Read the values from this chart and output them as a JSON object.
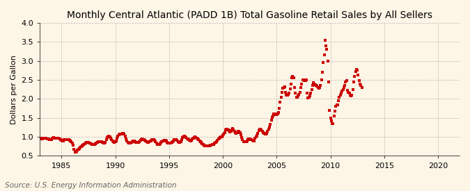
{
  "title": "Monthly Central Atlantic (PADD 1B) Total Gasoline Retail Sales by All Sellers",
  "ylabel": "Dollars per Gallon",
  "source": "Source: U.S. Energy Information Administration",
  "xlim": [
    1983,
    2022
  ],
  "ylim": [
    0.5,
    4.0
  ],
  "yticks": [
    0.5,
    1.0,
    1.5,
    2.0,
    2.5,
    3.0,
    3.5,
    4.0
  ],
  "xticks": [
    1985,
    1990,
    1995,
    2000,
    2005,
    2010,
    2015,
    2020
  ],
  "background_color": "#fdf5e6",
  "line_color": "#cc0000",
  "marker": "s",
  "markersize": 2.5,
  "title_fontsize": 10.0,
  "label_fontsize": 8.0,
  "tick_fontsize": 8.0,
  "source_fontsize": 7.5,
  "values": [
    0.97,
    0.95,
    0.94,
    0.96,
    0.97,
    0.97,
    0.96,
    0.95,
    0.95,
    0.94,
    0.93,
    0.93,
    0.93,
    0.96,
    0.98,
    0.97,
    0.97,
    0.97,
    0.96,
    0.96,
    0.96,
    0.94,
    0.92,
    0.91,
    0.9,
    0.9,
    0.92,
    0.93,
    0.93,
    0.92,
    0.92,
    0.92,
    0.91,
    0.89,
    0.87,
    0.83,
    0.78,
    0.67,
    0.6,
    0.6,
    0.62,
    0.65,
    0.68,
    0.7,
    0.72,
    0.74,
    0.76,
    0.78,
    0.8,
    0.82,
    0.84,
    0.85,
    0.85,
    0.85,
    0.84,
    0.83,
    0.82,
    0.81,
    0.8,
    0.8,
    0.8,
    0.82,
    0.84,
    0.86,
    0.87,
    0.88,
    0.88,
    0.87,
    0.87,
    0.85,
    0.83,
    0.84,
    0.86,
    0.92,
    0.98,
    1.01,
    1.02,
    1.0,
    0.97,
    0.93,
    0.9,
    0.88,
    0.86,
    0.87,
    0.9,
    0.96,
    1.02,
    1.06,
    1.07,
    1.07,
    1.08,
    1.09,
    1.1,
    1.08,
    1.02,
    0.94,
    0.89,
    0.85,
    0.83,
    0.83,
    0.84,
    0.86,
    0.88,
    0.89,
    0.89,
    0.88,
    0.86,
    0.85,
    0.85,
    0.86,
    0.88,
    0.91,
    0.93,
    0.94,
    0.93,
    0.93,
    0.91,
    0.89,
    0.87,
    0.86,
    0.86,
    0.87,
    0.89,
    0.9,
    0.92,
    0.93,
    0.92,
    0.91,
    0.88,
    0.84,
    0.81,
    0.81,
    0.81,
    0.82,
    0.85,
    0.87,
    0.89,
    0.9,
    0.91,
    0.91,
    0.89,
    0.86,
    0.84,
    0.83,
    0.83,
    0.84,
    0.86,
    0.88,
    0.9,
    0.92,
    0.93,
    0.93,
    0.91,
    0.88,
    0.86,
    0.85,
    0.88,
    0.93,
    0.99,
    1.01,
    1.02,
    1.0,
    0.98,
    0.95,
    0.94,
    0.93,
    0.91,
    0.9,
    0.91,
    0.94,
    0.97,
    0.99,
    1.0,
    0.99,
    0.97,
    0.95,
    0.93,
    0.9,
    0.88,
    0.85,
    0.82,
    0.8,
    0.78,
    0.77,
    0.77,
    0.77,
    0.76,
    0.76,
    0.77,
    0.79,
    0.79,
    0.8,
    0.8,
    0.81,
    0.83,
    0.85,
    0.87,
    0.91,
    0.94,
    0.97,
    0.99,
    1.0,
    1.01,
    1.04,
    1.07,
    1.12,
    1.18,
    1.2,
    1.21,
    1.19,
    1.16,
    1.13,
    1.15,
    1.19,
    1.22,
    1.18,
    1.15,
    1.11,
    1.1,
    1.12,
    1.14,
    1.14,
    1.11,
    1.05,
    0.99,
    0.93,
    0.88,
    0.87,
    0.87,
    0.88,
    0.9,
    0.92,
    0.94,
    0.94,
    0.93,
    0.92,
    0.91,
    0.9,
    0.89,
    0.97,
    1.0,
    1.04,
    1.09,
    1.17,
    1.2,
    1.2,
    1.18,
    1.15,
    1.12,
    1.09,
    1.07,
    1.08,
    1.1,
    1.14,
    1.2,
    1.26,
    1.33,
    1.44,
    1.52,
    1.55,
    1.6,
    1.6,
    1.59,
    1.59,
    1.6,
    1.65,
    1.76,
    1.91,
    2.05,
    2.18,
    2.28,
    2.3,
    2.32,
    2.18,
    2.1,
    2.09,
    2.11,
    2.16,
    2.27,
    2.4,
    2.55,
    2.6,
    2.55,
    2.3,
    2.15,
    2.05,
    2.05,
    2.08,
    2.12,
    2.18,
    2.3,
    2.4,
    2.5,
    2.5,
    2.48,
    2.48,
    2.5,
    2.15,
    2.02,
    2.05,
    2.08,
    2.15,
    2.25,
    2.35,
    2.42,
    2.4,
    2.38,
    2.35,
    2.33,
    2.3,
    2.28,
    2.3,
    2.35,
    2.5,
    2.7,
    2.95,
    3.15,
    3.55,
    3.4,
    3.3,
    3.0,
    2.45,
    1.7,
    1.5,
    1.42,
    1.35,
    1.35,
    1.55,
    1.68,
    1.8,
    1.85,
    1.85,
    1.95,
    2.05,
    2.1,
    2.15,
    2.2,
    2.25,
    2.3,
    2.35,
    2.45,
    2.48,
    2.22,
    2.18,
    2.15,
    2.1,
    2.08,
    2.1,
    2.25,
    2.45,
    2.6,
    2.72,
    2.78,
    2.75,
    2.62,
    2.48,
    2.4,
    2.35,
    2.3
  ],
  "start_year": 1983,
  "start_month": 2
}
